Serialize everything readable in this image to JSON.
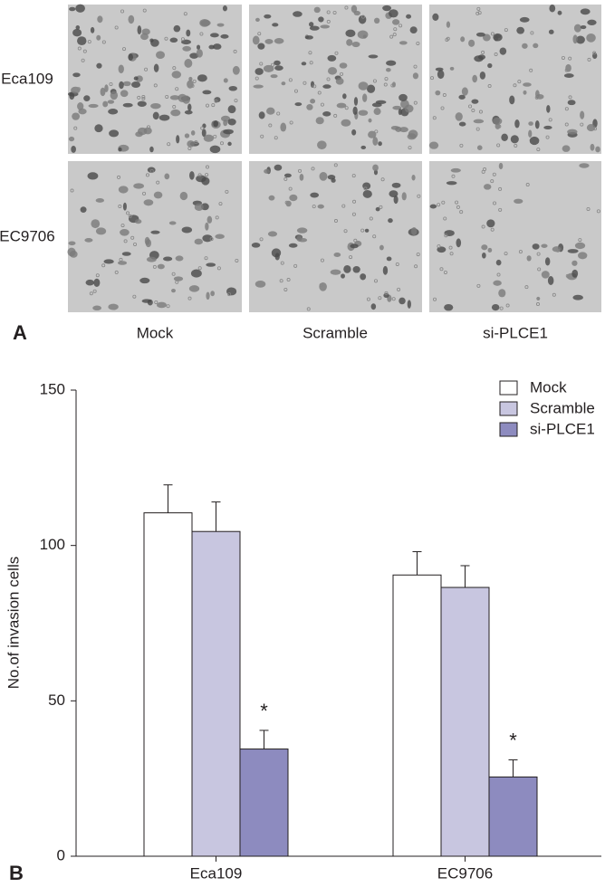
{
  "panel_a": {
    "label": "A",
    "rows": [
      "Eca109",
      "EC9706"
    ],
    "columns": [
      "Mock",
      "Scramble",
      "si-PLCE1"
    ]
  },
  "panel_b_label": "B",
  "chart_data": {
    "type": "bar",
    "y_label": "No.of invasion cells",
    "categories": [
      "Eca109",
      "EC9706"
    ],
    "series": [
      {
        "name": "Mock",
        "color": "#ffffff",
        "values": [
          110.5,
          90.5
        ],
        "errors": [
          9,
          7.5
        ]
      },
      {
        "name": "Scramble",
        "color": "#c8c6e0",
        "values": [
          104.5,
          86.5
        ],
        "errors": [
          9.5,
          7
        ]
      },
      {
        "name": "si-PLCE1",
        "color": "#8d8bbf",
        "values": [
          34.5,
          25.5
        ],
        "errors": [
          6,
          5.5
        ],
        "annotations": [
          "*",
          "*"
        ]
      }
    ],
    "ylim": [
      0,
      150
    ],
    "yticks": [
      0,
      50,
      100,
      150
    ],
    "grid": false,
    "legend": "upper right"
  }
}
